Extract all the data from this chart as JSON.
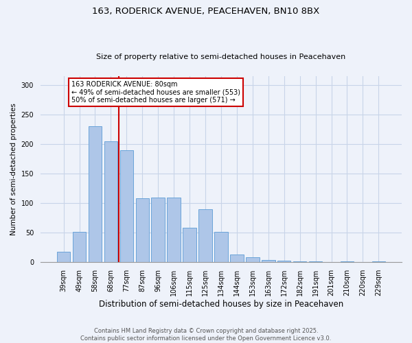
{
  "title1": "163, RODERICK AVENUE, PEACEHAVEN, BN10 8BX",
  "title2": "Size of property relative to semi-detached houses in Peacehaven",
  "xlabel": "Distribution of semi-detached houses by size in Peacehaven",
  "ylabel": "Number of semi-detached properties",
  "categories": [
    "39sqm",
    "49sqm",
    "58sqm",
    "68sqm",
    "77sqm",
    "87sqm",
    "96sqm",
    "106sqm",
    "115sqm",
    "125sqm",
    "134sqm",
    "144sqm",
    "153sqm",
    "163sqm",
    "172sqm",
    "182sqm",
    "191sqm",
    "201sqm",
    "210sqm",
    "220sqm",
    "229sqm"
  ],
  "values": [
    18,
    52,
    230,
    205,
    190,
    108,
    110,
    110,
    58,
    90,
    52,
    13,
    8,
    4,
    3,
    1,
    1,
    0,
    1,
    0,
    1
  ],
  "bar_color": "#aec6e8",
  "bar_edge_color": "#5b9bd5",
  "vline_index": 4,
  "vline_color": "#cc0000",
  "annotation_title": "163 RODERICK AVENUE: 80sqm",
  "annotation_line1": "← 49% of semi-detached houses are smaller (553)",
  "annotation_line2": "50% of semi-detached houses are larger (571) →",
  "annotation_box_color": "#ffffff",
  "annotation_box_edge": "#cc0000",
  "footnote1": "Contains HM Land Registry data © Crown copyright and database right 2025.",
  "footnote2": "Contains public sector information licensed under the Open Government Licence v3.0.",
  "ylim": [
    0,
    315
  ],
  "yticks": [
    0,
    50,
    100,
    150,
    200,
    250,
    300
  ],
  "grid_color": "#c8d4e8",
  "bg_color": "#eef2fa",
  "title1_fontsize": 9.5,
  "title2_fontsize": 8.0,
  "xlabel_fontsize": 8.5,
  "ylabel_fontsize": 7.5,
  "tick_fontsize": 7.0,
  "annot_fontsize": 7.0,
  "footnote_fontsize": 6.0
}
